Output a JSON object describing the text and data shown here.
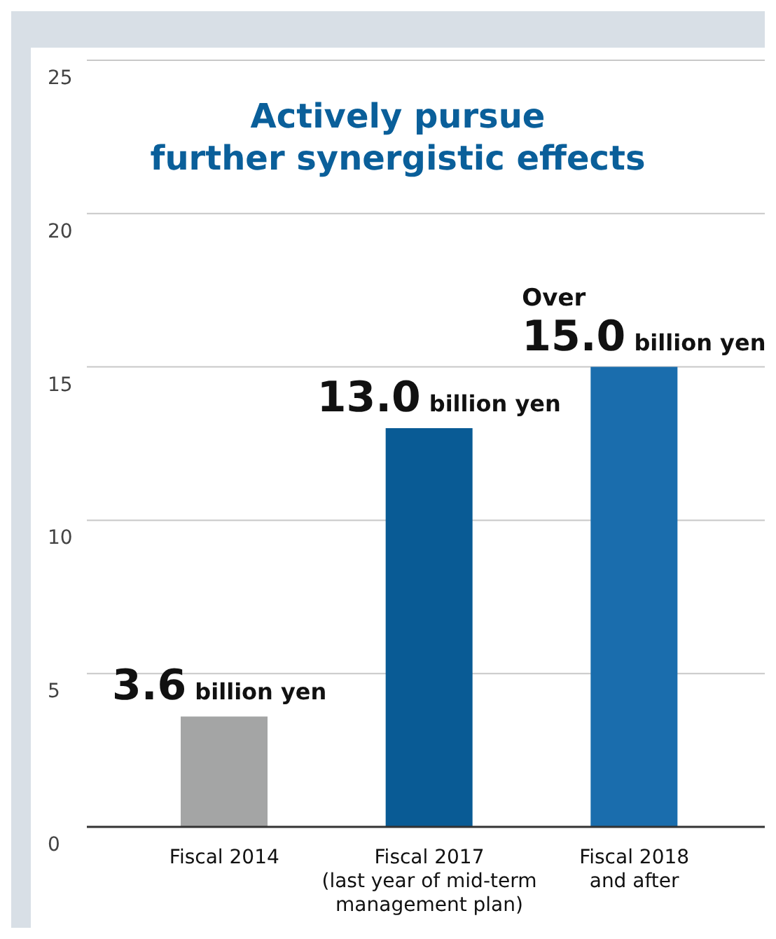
{
  "chart_data": {
    "type": "bar",
    "title": "Actively pursue\nfurther synergistic effects",
    "categories": [
      "Fiscal 2014",
      "Fiscal 2017\n(last year of mid-term\nmanagement plan)",
      "Fiscal 2018\nand after"
    ],
    "values": [
      3.6,
      13.0,
      15.0
    ],
    "colors": [
      "#a4a5a5",
      "#095b95",
      "#1a6dad"
    ],
    "value_labels": [
      "3.6 billion yen",
      "13.0 billion yen",
      "Over 15.0 billion yen"
    ],
    "ylim": [
      0,
      25
    ],
    "yticks": [
      0,
      5,
      10,
      15,
      20,
      25
    ],
    "grid": "y"
  }
}
